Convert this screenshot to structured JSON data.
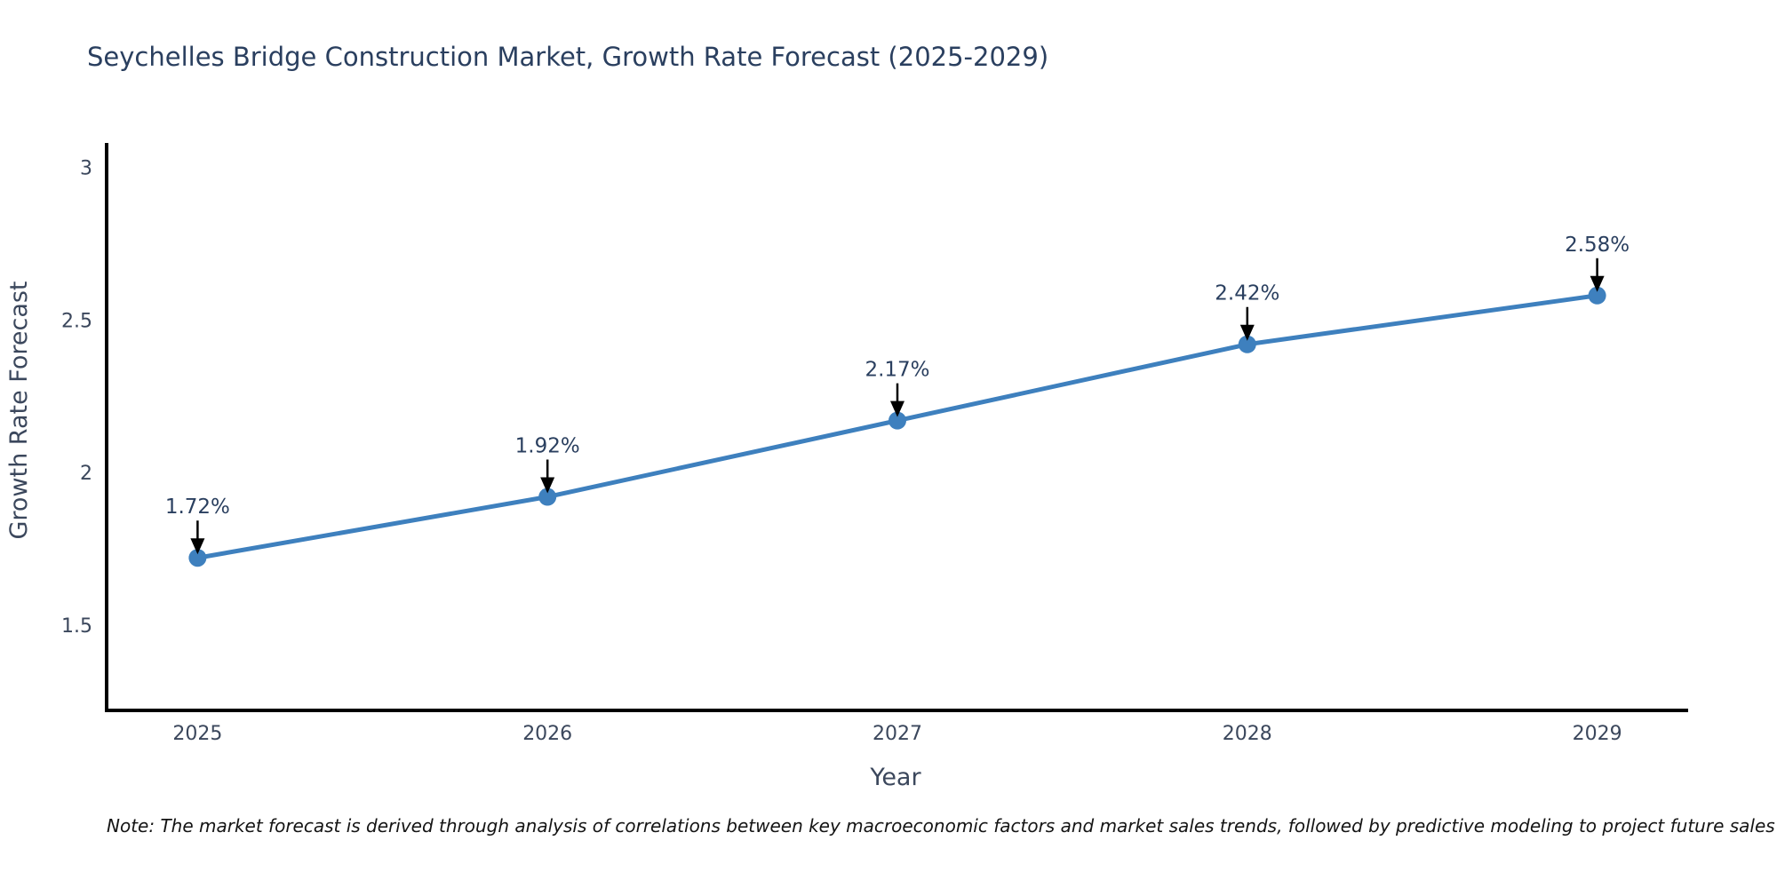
{
  "chart_data": {
    "type": "line",
    "title": "Seychelles Bridge Construction Market, Growth Rate Forecast (2025-2029)",
    "xlabel": "Year",
    "ylabel": "Growth Rate Forecast",
    "x": [
      2025,
      2026,
      2027,
      2028,
      2029
    ],
    "values": [
      1.72,
      1.92,
      2.17,
      2.42,
      2.58
    ],
    "point_labels": [
      "1.72%",
      "1.92%",
      "2.17%",
      "2.42%",
      "2.58%"
    ],
    "x_ticks": [
      "2025",
      "2026",
      "2027",
      "2028",
      "2029"
    ],
    "y_ticks": [
      "1.5",
      "2",
      "2.5",
      "3"
    ],
    "y_tick_values": [
      1.5,
      2,
      2.5,
      3
    ],
    "xlim": [
      2024.74,
      2029.26
    ],
    "ylim": [
      1.22,
      3.08
    ],
    "grid": false,
    "legend": "none",
    "line_color": "#3e80be",
    "marker_color": "#3e80be",
    "spine_color": "#000000",
    "arrow_color": "#000000",
    "text_color": "#2a3f5f"
  },
  "note": {
    "text": "Note: The market forecast is derived through analysis of correlations between key macroeconomic factors and market sales trends, followed by predictive modeling to project future sales"
  }
}
